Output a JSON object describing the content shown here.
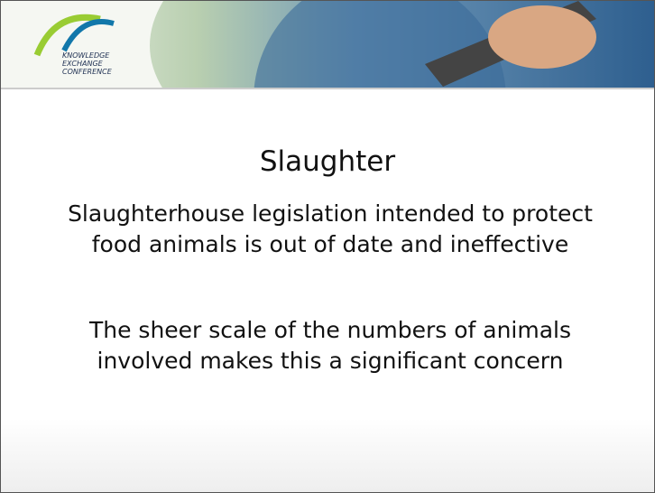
{
  "header": {
    "logo_lines": [
      "KNOWLEDGE",
      "EXCHANGE",
      "CONFERENCE"
    ]
  },
  "slide": {
    "title": "Slaughter",
    "paragraphs": [
      "Slaughterhouse legislation intended to protect food animals is out of date and ineffective",
      "The sheer scale of the numbers of animals involved makes this a significant concern"
    ]
  }
}
